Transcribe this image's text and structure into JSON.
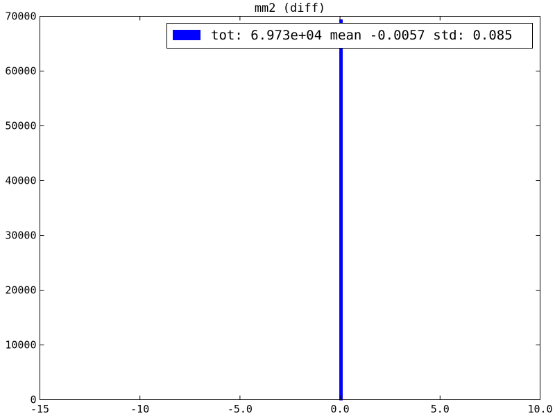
{
  "chart_data": {
    "type": "bar",
    "title": "mm2 (diff)",
    "xlabel": "",
    "ylabel": "",
    "xlim": [
      -15,
      10
    ],
    "ylim": [
      0,
      70000
    ],
    "x_ticks": [
      {
        "value": -15,
        "label": "-15"
      },
      {
        "value": -10,
        "label": "-10"
      },
      {
        "value": -5,
        "label": "-5.0"
      },
      {
        "value": 0,
        "label": "0.0"
      },
      {
        "value": 5,
        "label": "5.0"
      },
      {
        "value": 10,
        "label": "10.0"
      }
    ],
    "y_ticks": [
      {
        "value": 0,
        "label": "0"
      },
      {
        "value": 10000,
        "label": "10000"
      },
      {
        "value": 20000,
        "label": "20000"
      },
      {
        "value": 30000,
        "label": "30000"
      },
      {
        "value": 40000,
        "label": "40000"
      },
      {
        "value": 50000,
        "label": "50000"
      },
      {
        "value": 60000,
        "label": "60000"
      },
      {
        "value": 70000,
        "label": "70000"
      }
    ],
    "series": [
      {
        "name": "tot: 6.973e+04 mean -0.0057 std: 0.085",
        "color": "#0000ff",
        "bins": [
          {
            "x0": 0.0,
            "x1": 0.1,
            "count": 69300
          }
        ]
      }
    ],
    "grid": false,
    "legend_position": "upper-right"
  }
}
